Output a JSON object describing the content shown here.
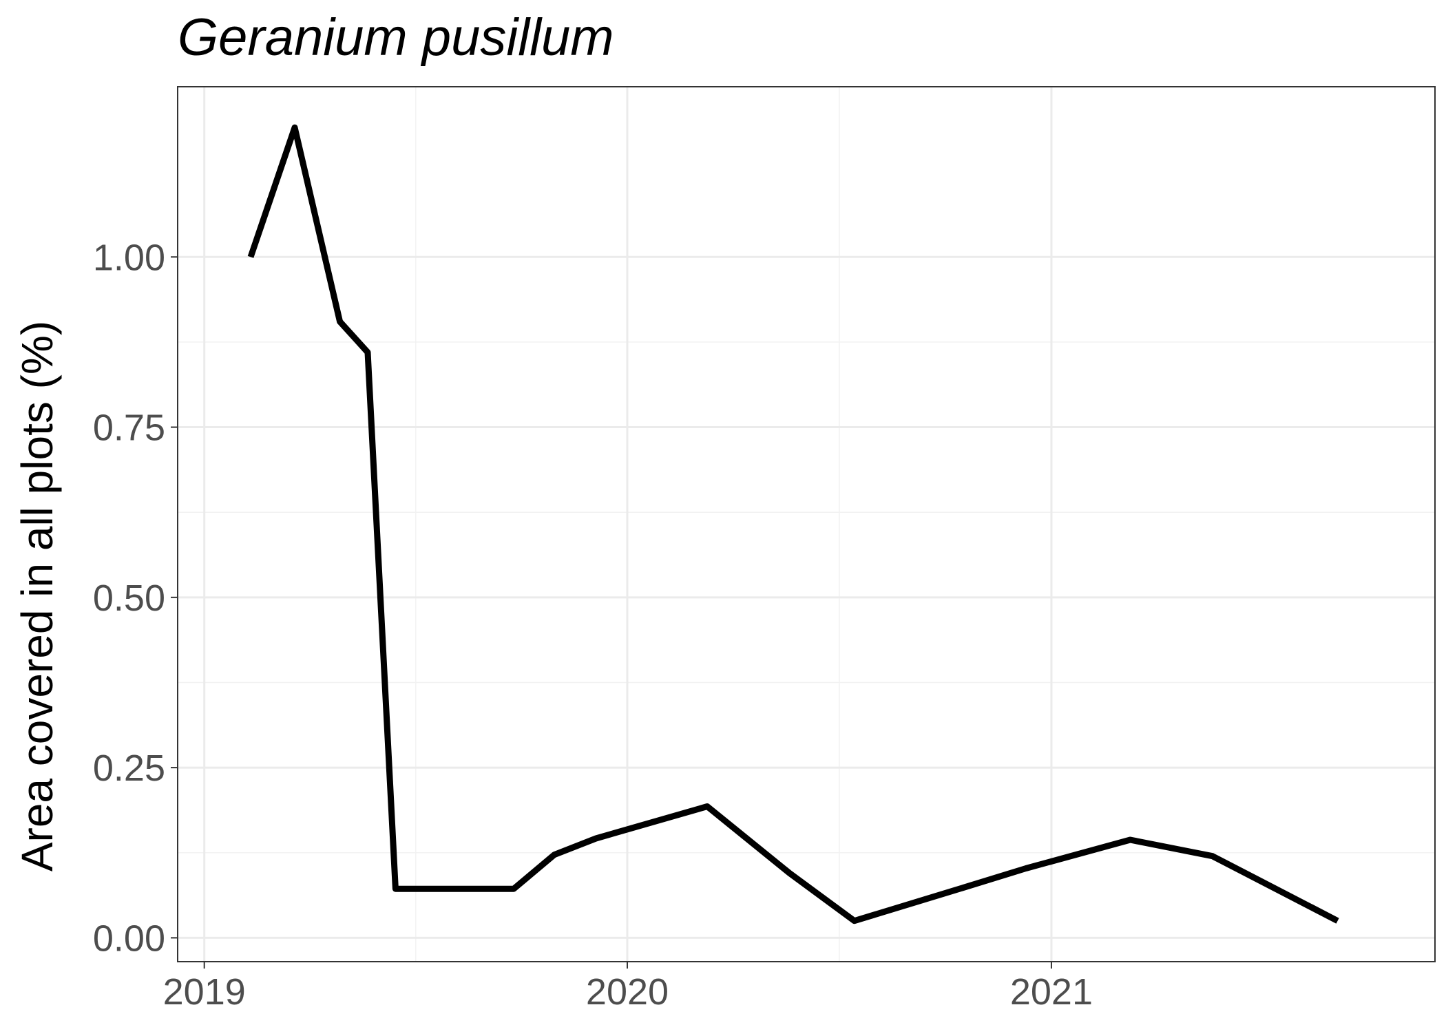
{
  "chart_data": {
    "type": "line",
    "title": "Geranium pusillum",
    "xlabel": "",
    "ylabel": "Area covered in all plots (%)",
    "x_ticks": [
      "2019",
      "2020",
      "2021"
    ],
    "y_ticks": [
      "0.00",
      "0.25",
      "0.50",
      "0.75",
      "1.00"
    ],
    "xlim": [
      "2018-12-09",
      "2021-11-28"
    ],
    "ylim": [
      -0.035,
      1.25
    ],
    "grid": true,
    "series": [
      {
        "color": "#000000",
        "x": [
          "2019-02-10",
          "2019-03-20",
          "2019-04-28",
          "2019-05-22",
          "2019-06-15",
          "2019-08-05",
          "2019-09-25",
          "2019-10-30",
          "2019-12-05",
          "2020-03-10",
          "2020-05-20",
          "2020-07-15",
          "2020-10-10",
          "2020-12-10",
          "2021-03-10",
          "2021-05-20",
          "2021-09-05"
        ],
        "values": [
          1.0,
          1.19,
          0.905,
          0.86,
          0.072,
          0.072,
          0.072,
          0.122,
          0.146,
          0.193,
          0.095,
          0.025,
          0.07,
          0.102,
          0.144,
          0.12,
          0.025
        ]
      }
    ]
  }
}
